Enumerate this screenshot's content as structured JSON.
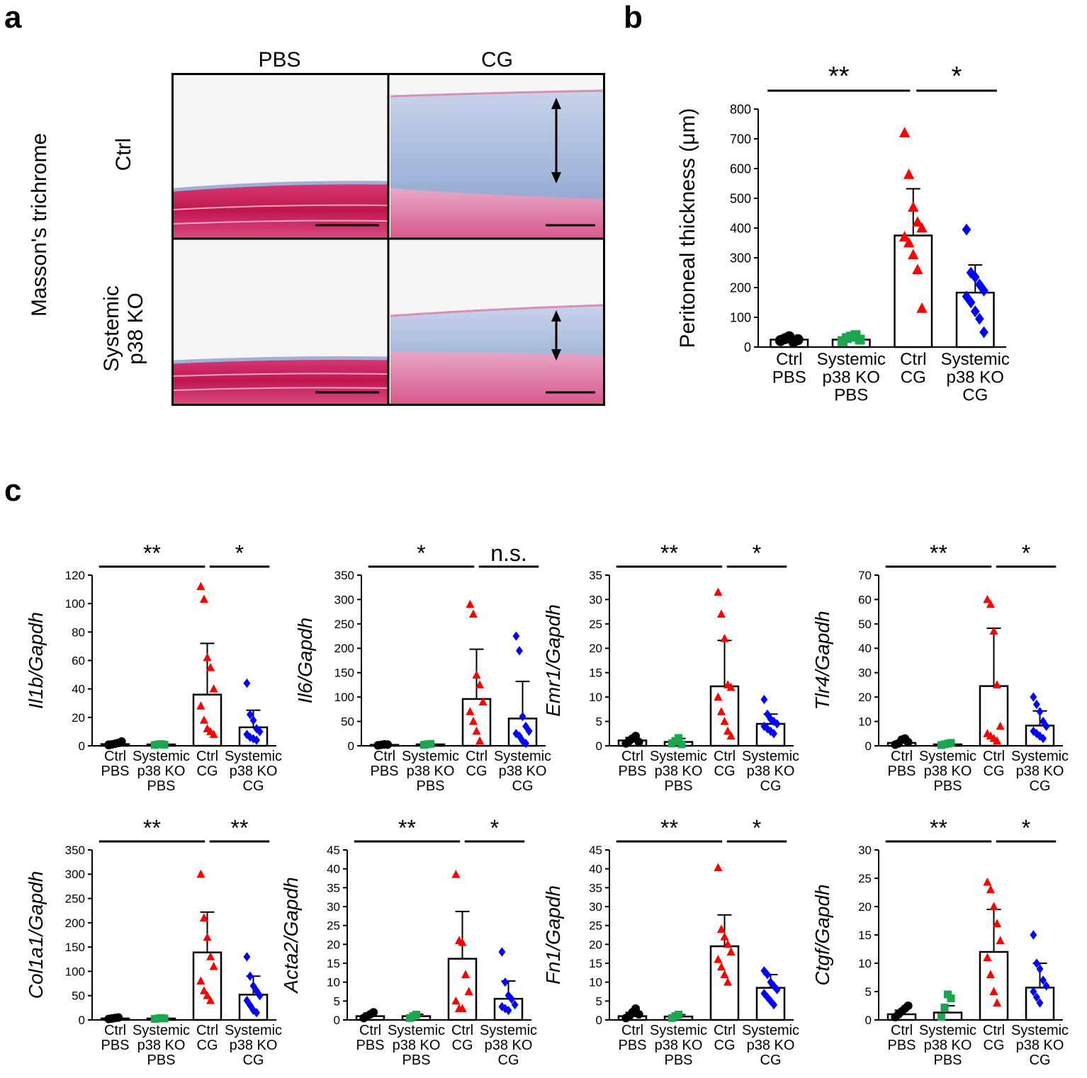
{
  "panel_labels": {
    "a": "a",
    "b": "b",
    "c": "c"
  },
  "panel_a": {
    "stain_label": "Masson's trichrome",
    "columns": [
      "PBS",
      "CG"
    ],
    "rows": [
      [
        "Ctrl"
      ],
      [
        "Systemic",
        "p38 KO"
      ]
    ],
    "colors": {
      "muscle": "#c81e5a",
      "fibrotic": "#a9bcdc",
      "background": "#f7f7f7"
    }
  },
  "chart_data": [
    {
      "id": "peritoneal-thickness",
      "type": "bar",
      "ylabel": "Peritoneal thickness (μm)",
      "ylim": [
        0,
        800
      ],
      "yticks": [
        0,
        100,
        200,
        300,
        400,
        500,
        600,
        700,
        800
      ],
      "categories": [
        [
          "Ctrl",
          "PBS"
        ],
        [
          "Systemic",
          "p38 KO",
          "PBS"
        ],
        [
          "Ctrl",
          "CG"
        ],
        [
          "Systemic",
          "p38 KO",
          "CG"
        ]
      ],
      "values": [
        25,
        25,
        375,
        183
      ],
      "sd": [
        0,
        12,
        157,
        93
      ],
      "points": [
        [
          22,
          28,
          35,
          18,
          25
        ],
        [
          20,
          30,
          35,
          40,
          25
        ],
        [
          720,
          580,
          470,
          420,
          400,
          370,
          350,
          310,
          260,
          130
        ],
        [
          395,
          250,
          235,
          210,
          190,
          170,
          150,
          120,
          95,
          50
        ]
      ],
      "significance": [
        {
          "from": 0,
          "to": 2,
          "label": "**"
        },
        {
          "from": 2,
          "to": 3,
          "label": "*"
        }
      ]
    },
    {
      "id": "il1b",
      "type": "bar",
      "ylabel": "Il1b/Gapdh",
      "ylim": [
        0,
        120
      ],
      "yticks": [
        0,
        20,
        40,
        60,
        80,
        100,
        120
      ],
      "categories": [
        [
          "Ctrl",
          "PBS"
        ],
        [
          "Systemic",
          "p38 KO",
          "PBS"
        ],
        [
          "Ctrl",
          "CG"
        ],
        [
          "Systemic",
          "p38 KO",
          "CG"
        ]
      ],
      "values": [
        1.2,
        1,
        36,
        13
      ],
      "sd": [
        0,
        0,
        36,
        12
      ],
      "points": [
        [
          0.5,
          1,
          1.5,
          2,
          3,
          0.8
        ],
        [
          0.6,
          1,
          1.2,
          0.8
        ],
        [
          112,
          103,
          62,
          55,
          40,
          28,
          18,
          12,
          10,
          8
        ],
        [
          44,
          22,
          18,
          12,
          10,
          8,
          6,
          5,
          4
        ]
      ],
      "significance": [
        {
          "from": 0,
          "to": 2,
          "label": "**"
        },
        {
          "from": 2,
          "to": 3,
          "label": "*"
        }
      ]
    },
    {
      "id": "il6",
      "type": "bar",
      "ylabel": "Il6/Gapdh",
      "ylim": [
        0,
        350
      ],
      "yticks": [
        0,
        50,
        100,
        150,
        200,
        250,
        300,
        350
      ],
      "categories": [
        [
          "Ctrl",
          "PBS"
        ],
        [
          "Systemic",
          "p38 KO",
          "PBS"
        ],
        [
          "Ctrl",
          "CG"
        ],
        [
          "Systemic",
          "p38 KO",
          "CG"
        ]
      ],
      "values": [
        2,
        3,
        96,
        56
      ],
      "sd": [
        0,
        0,
        102,
        76
      ],
      "points": [
        [
          1,
          2,
          3,
          2.5
        ],
        [
          2,
          3,
          4
        ],
        [
          290,
          270,
          145,
          125,
          90,
          70,
          50,
          30,
          10
        ],
        [
          225,
          195,
          60,
          40,
          30,
          25,
          20,
          10,
          5
        ]
      ],
      "significance": [
        {
          "from": 0,
          "to": 2,
          "label": "*"
        },
        {
          "from": 2,
          "to": 3,
          "label": "n.s."
        }
      ]
    },
    {
      "id": "emr1",
      "type": "bar",
      "ylabel": "Emr1/Gapdh",
      "ylim": [
        0,
        35
      ],
      "yticks": [
        0,
        5,
        10,
        15,
        20,
        25,
        30,
        35
      ],
      "categories": [
        [
          "Ctrl",
          "PBS"
        ],
        [
          "Systemic",
          "p38 KO",
          "PBS"
        ],
        [
          "Ctrl",
          "CG"
        ],
        [
          "Systemic",
          "p38 KO",
          "CG"
        ]
      ],
      "values": [
        1.1,
        0.8,
        12.2,
        4.5
      ],
      "sd": [
        0.6,
        0.7,
        9.4,
        2
      ],
      "points": [
        [
          0.5,
          1,
          1.5,
          2,
          0.8
        ],
        [
          0.5,
          1,
          1.6,
          0.3
        ],
        [
          31.5,
          27,
          22,
          12.5,
          12,
          10,
          7,
          5,
          3,
          2
        ],
        [
          9.5,
          6.5,
          5.5,
          5,
          4.5,
          4,
          3.5,
          3,
          2.5
        ]
      ],
      "significance": [
        {
          "from": 0,
          "to": 2,
          "label": "**"
        },
        {
          "from": 2,
          "to": 3,
          "label": "*"
        }
      ]
    },
    {
      "id": "tlr4",
      "type": "bar",
      "ylabel": "Tlr4/Gapdh",
      "ylim": [
        0,
        70
      ],
      "yticks": [
        0,
        10,
        20,
        30,
        40,
        50,
        60,
        70
      ],
      "categories": [
        [
          "Ctrl",
          "PBS"
        ],
        [
          "Systemic",
          "p38 KO",
          "PBS"
        ],
        [
          "Ctrl",
          "CG"
        ],
        [
          "Systemic",
          "p38 KO",
          "CG"
        ]
      ],
      "values": [
        1.2,
        0.6,
        24.5,
        8.3
      ],
      "sd": [
        0.8,
        0.4,
        23.7,
        6
      ],
      "points": [
        [
          0.5,
          1,
          2.5,
          3,
          1.5
        ],
        [
          0.3,
          0.6,
          0.9,
          1.2
        ],
        [
          60,
          58,
          47,
          25,
          8,
          5,
          4,
          3,
          2
        ],
        [
          20,
          17,
          14,
          10,
          8,
          6,
          5,
          4,
          3
        ]
      ],
      "significance": [
        {
          "from": 0,
          "to": 2,
          "label": "**"
        },
        {
          "from": 2,
          "to": 3,
          "label": "*"
        }
      ]
    },
    {
      "id": "col1a1",
      "type": "bar",
      "ylabel": "Col1a1/Gapdh",
      "ylim": [
        0,
        350
      ],
      "yticks": [
        0,
        50,
        100,
        150,
        200,
        250,
        300,
        350
      ],
      "categories": [
        [
          "Ctrl",
          "PBS"
        ],
        [
          "Systemic",
          "p38 KO",
          "PBS"
        ],
        [
          "Ctrl",
          "CG"
        ],
        [
          "Systemic",
          "p38 KO",
          "CG"
        ]
      ],
      "values": [
        3,
        3,
        139,
        52
      ],
      "sd": [
        0,
        0,
        83,
        38
      ],
      "points": [
        [
          2,
          3,
          4,
          5
        ],
        [
          2,
          3,
          4,
          3
        ],
        [
          300,
          210,
          170,
          130,
          110,
          80,
          60,
          50,
          40
        ],
        [
          130,
          90,
          70,
          60,
          50,
          40,
          30,
          20,
          15
        ]
      ],
      "significance": [
        {
          "from": 0,
          "to": 2,
          "label": "**"
        },
        {
          "from": 2,
          "to": 3,
          "label": "**"
        }
      ]
    },
    {
      "id": "acta2",
      "type": "bar",
      "ylabel": "Acta2/Gapdh",
      "ylim": [
        0,
        45
      ],
      "yticks": [
        0,
        5,
        10,
        15,
        20,
        25,
        30,
        35,
        40,
        45
      ],
      "categories": [
        [
          "Ctrl",
          "PBS"
        ],
        [
          "Systemic",
          "p38 KO",
          "PBS"
        ],
        [
          "Ctrl",
          "CG"
        ],
        [
          "Systemic",
          "p38 KO",
          "CG"
        ]
      ],
      "values": [
        1,
        1,
        16.2,
        5.6
      ],
      "sd": [
        0.8,
        0.5,
        12.5,
        4.7
      ],
      "points": [
        [
          0.5,
          1,
          1.5,
          2
        ],
        [
          0.5,
          1,
          1.4
        ],
        [
          38.5,
          21,
          20.5,
          12,
          7.5,
          5,
          3,
          3
        ],
        [
          18,
          10,
          6.5,
          5.5,
          4,
          3.5,
          3,
          2.5
        ]
      ],
      "significance": [
        {
          "from": 0,
          "to": 2,
          "label": "**"
        },
        {
          "from": 2,
          "to": 3,
          "label": "*"
        }
      ]
    },
    {
      "id": "fn1",
      "type": "bar",
      "ylabel": "Fn1/Gapdh",
      "ylim": [
        0,
        45
      ],
      "yticks": [
        0,
        5,
        10,
        15,
        20,
        25,
        30,
        35,
        40,
        45
      ],
      "categories": [
        [
          "Ctrl",
          "PBS"
        ],
        [
          "Systemic",
          "p38 KO",
          "PBS"
        ],
        [
          "Ctrl",
          "CG"
        ],
        [
          "Systemic",
          "p38 KO",
          "CG"
        ]
      ],
      "values": [
        1,
        0.9,
        19.5,
        8.5
      ],
      "sd": [
        1,
        0.5,
        8.3,
        3.5
      ],
      "points": [
        [
          0.5,
          1,
          2,
          3,
          1.5
        ],
        [
          0.5,
          1,
          1.4
        ],
        [
          40.3,
          24,
          22,
          20,
          18,
          16,
          14,
          12,
          10
        ],
        [
          13,
          12,
          10,
          9,
          8,
          7,
          6,
          5,
          4
        ]
      ],
      "significance": [
        {
          "from": 0,
          "to": 2,
          "label": "**"
        },
        {
          "from": 2,
          "to": 3,
          "label": "*"
        }
      ]
    },
    {
      "id": "ctgf",
      "type": "bar",
      "ylabel": "Ctgf/Gapdh",
      "ylim": [
        0,
        30
      ],
      "yticks": [
        0,
        5,
        10,
        15,
        20,
        25,
        30
      ],
      "categories": [
        [
          "Ctrl",
          "PBS"
        ],
        [
          "Systemic",
          "p38 KO",
          "PBS"
        ],
        [
          "Ctrl",
          "CG"
        ],
        [
          "Systemic",
          "p38 KO",
          "CG"
        ]
      ],
      "values": [
        1,
        1.3,
        12,
        5.7
      ],
      "sd": [
        0.7,
        1.2,
        7.5,
        4.3
      ],
      "points": [
        [
          0.5,
          1,
          1.5,
          2,
          2.5
        ],
        [
          0.5,
          2.2,
          4.5,
          3.8
        ],
        [
          24.3,
          23,
          20,
          17,
          14,
          11,
          8,
          5,
          3
        ],
        [
          15,
          10,
          9,
          7,
          6,
          5,
          4,
          3
        ]
      ],
      "significance": [
        {
          "from": 0,
          "to": 2,
          "label": "**"
        },
        {
          "from": 2,
          "to": 3,
          "label": "*"
        }
      ]
    }
  ]
}
